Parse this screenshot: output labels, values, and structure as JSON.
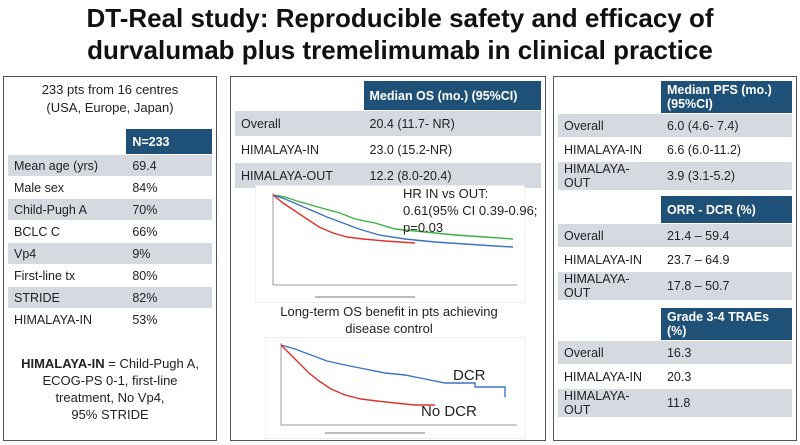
{
  "title": [
    "DT-Real study: Reproducible safety and efficacy of",
    "durvalumab plus tremelimumab in clinical practice"
  ],
  "left": {
    "intro": [
      "233 pts from 16 centres",
      "(USA, Europe, Japan)"
    ],
    "table": {
      "header": "N=233",
      "rows": [
        [
          "Mean age (yrs)",
          "69.4"
        ],
        [
          "Male sex",
          "84%"
        ],
        [
          "Child-Pugh A",
          "70%"
        ],
        [
          "BCLC C",
          "66%"
        ],
        [
          "Vp4",
          "9%"
        ],
        [
          "First-line tx",
          "80%"
        ],
        [
          "STRIDE",
          "82%"
        ],
        [
          "HIMALAYA-IN",
          "53%"
        ]
      ]
    },
    "note": {
      "term": "HIMALAYA-IN",
      "lines": [
        " = Child-Pugh A,",
        "ECOG-PS 0-1, first-line",
        "treatment, No Vp4,",
        "95% STRIDE"
      ]
    }
  },
  "middle": {
    "table": {
      "header": "Median OS (mo.) (95%CI)",
      "rows": [
        [
          "Overall",
          "20.4 (11.7- NR)"
        ],
        [
          "HIMALAYA-IN",
          "23.0 (15.2-NR)"
        ],
        [
          "HIMALAYA-OUT",
          "12.2 (8.0-20.4)"
        ]
      ]
    },
    "plot1": {
      "annotation": "HR IN vs OUT: 0.61(95% CI 0.39-0.96; p=0.03"
    },
    "caption": "Long-term OS benefit in pts achieving disease control",
    "plot2": {
      "labels": [
        "DCR",
        "No DCR"
      ]
    }
  },
  "right": {
    "tables": [
      {
        "header": "Median PFS (mo.) (95%CI)",
        "rows": [
          [
            "Overall",
            "6.0 (4.6- 7.4)"
          ],
          [
            "HIMALAYA-IN",
            "6.6 (6.0-11.2)"
          ],
          [
            "HIMALAYA-OUT",
            "3.9 (3.1-5.2)"
          ]
        ]
      },
      {
        "header": "ORR - DCR (%)",
        "rows": [
          [
            "Overall",
            "21.4 – 59.4"
          ],
          [
            "HIMALAYA-IN",
            "23.7 – 64.9"
          ],
          [
            "HIMALAYA-OUT",
            "17.8 – 50.7"
          ]
        ]
      },
      {
        "header": "Grade 3-4 TRAEs (%)",
        "rows": [
          [
            "Overall",
            "16.3"
          ],
          [
            "HIMALAYA-IN",
            "20.3"
          ],
          [
            "HIMALAYA-OUT",
            "11.8"
          ]
        ]
      }
    ]
  }
}
